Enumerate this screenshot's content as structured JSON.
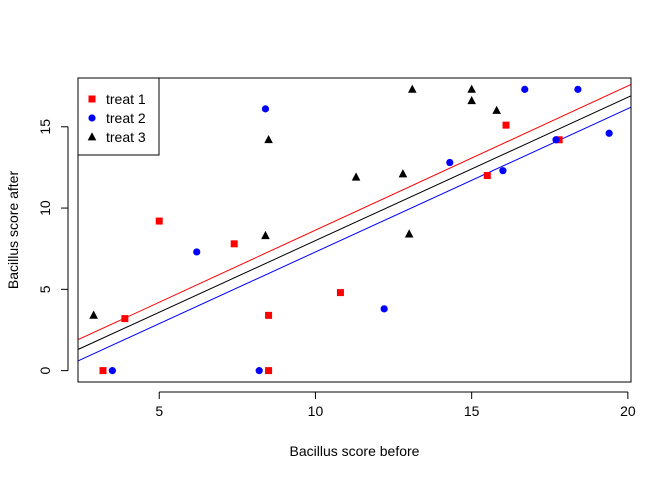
{
  "chart_data": {
    "type": "scatter",
    "title": "",
    "xlabel": "Bacillus score before",
    "ylabel": "Bacillus score after",
    "xlim": [
      2.4,
      20.1
    ],
    "ylim": [
      -0.7,
      18.0
    ],
    "xticks": [
      5,
      10,
      15,
      20
    ],
    "yticks": [
      0,
      5,
      10,
      15
    ],
    "grid": false,
    "legend_position": "top-left",
    "series": [
      {
        "name": "treat 1",
        "color": "#ff0000",
        "marker": "square",
        "points": [
          {
            "x": 3.2,
            "y": 0.0
          },
          {
            "x": 3.9,
            "y": 3.2
          },
          {
            "x": 5.0,
            "y": 9.2
          },
          {
            "x": 7.4,
            "y": 7.8
          },
          {
            "x": 8.5,
            "y": 3.4
          },
          {
            "x": 8.5,
            "y": 0.0
          },
          {
            "x": 10.8,
            "y": 4.8
          },
          {
            "x": 15.5,
            "y": 12.0
          },
          {
            "x": 16.1,
            "y": 15.1
          },
          {
            "x": 17.8,
            "y": 14.2
          }
        ]
      },
      {
        "name": "treat 2",
        "color": "#0000ff",
        "marker": "circle",
        "points": [
          {
            "x": 3.5,
            "y": 0.0
          },
          {
            "x": 6.2,
            "y": 7.3
          },
          {
            "x": 8.2,
            "y": 0.0
          },
          {
            "x": 8.4,
            "y": 16.1
          },
          {
            "x": 12.2,
            "y": 3.8
          },
          {
            "x": 14.3,
            "y": 12.8
          },
          {
            "x": 16.0,
            "y": 12.3
          },
          {
            "x": 16.7,
            "y": 17.3
          },
          {
            "x": 17.7,
            "y": 14.2
          },
          {
            "x": 18.4,
            "y": 17.3
          },
          {
            "x": 19.4,
            "y": 14.6
          }
        ]
      },
      {
        "name": "treat 3",
        "color": "#000000",
        "marker": "triangle",
        "points": [
          {
            "x": 2.9,
            "y": 3.4
          },
          {
            "x": 8.4,
            "y": 8.3
          },
          {
            "x": 8.5,
            "y": 14.2
          },
          {
            "x": 11.3,
            "y": 11.9
          },
          {
            "x": 12.8,
            "y": 12.1
          },
          {
            "x": 13.0,
            "y": 8.4
          },
          {
            "x": 13.1,
            "y": 17.3
          },
          {
            "x": 15.0,
            "y": 17.3
          },
          {
            "x": 15.0,
            "y": 16.6
          },
          {
            "x": 15.8,
            "y": 16.0
          }
        ]
      }
    ],
    "fit_lines": [
      {
        "color": "#ff0000",
        "x": [
          2.4,
          20.1
        ],
        "y": [
          1.9,
          17.6
        ]
      },
      {
        "color": "#000000",
        "x": [
          2.4,
          20.1
        ],
        "y": [
          1.3,
          16.9
        ]
      },
      {
        "color": "#0000ff",
        "x": [
          2.4,
          20.1
        ],
        "y": [
          0.6,
          16.2
        ]
      }
    ]
  }
}
